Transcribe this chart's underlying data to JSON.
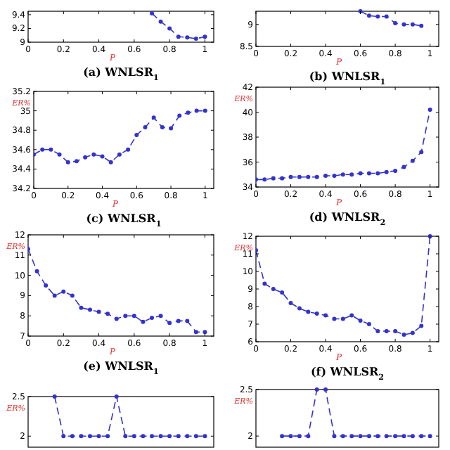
{
  "chart_data": [
    {
      "type": "line",
      "title": "(a) WNLSR$_{1}$",
      "xlabel": "P",
      "series": [
        {
          "color": "#3333cc",
          "x": [
            0.7,
            0.75,
            0.8,
            0.85,
            0.9,
            0.95,
            1
          ],
          "values": [
            9.42,
            9.3,
            9.2,
            9.08,
            9.07,
            9.05,
            9.08
          ]
        }
      ],
      "xlim": [
        0,
        1.05
      ],
      "xticks": [
        0,
        0.2,
        0.4,
        0.6,
        0.8,
        1
      ],
      "ylim": [
        9,
        9.45
      ],
      "yticks": [
        9,
        9.2,
        9.4
      ],
      "marker": "circle",
      "line_style": "dashed"
    },
    {
      "type": "line",
      "title": "(b) WNLSR$_{1}$",
      "xlabel": "P",
      "series": [
        {
          "color": "#3333cc",
          "x": [
            0.6,
            0.65,
            0.7,
            0.75,
            0.8,
            0.85,
            0.9,
            0.95
          ],
          "values": [
            9.3,
            9.2,
            9.18,
            9.18,
            9.03,
            9.0,
            9.0,
            8.97
          ]
        }
      ],
      "xlim": [
        0,
        1.05
      ],
      "xticks": [
        0,
        0.2,
        0.4,
        0.6,
        0.8,
        1
      ],
      "ylim": [
        8.5,
        9.3
      ],
      "yticks": [
        8.5,
        9
      ],
      "marker": "circle",
      "line_style": "dashed"
    },
    {
      "type": "line",
      "title": "(c) WNLSR$_{1}$",
      "xlabel": "P",
      "ylabel": "ER%",
      "x": [
        0,
        0.05,
        0.1,
        0.15,
        0.2,
        0.25,
        0.3,
        0.35,
        0.4,
        0.45,
        0.5,
        0.55,
        0.6,
        0.65,
        0.7,
        0.75,
        0.8,
        0.85,
        0.9,
        0.95,
        1
      ],
      "series": [
        {
          "color": "#3333cc",
          "values": [
            34.55,
            34.6,
            34.6,
            34.55,
            34.47,
            34.48,
            34.52,
            34.55,
            34.53,
            34.47,
            34.55,
            34.6,
            34.75,
            34.83,
            34.93,
            34.83,
            34.82,
            34.95,
            34.98,
            35.0,
            35.0
          ]
        }
      ],
      "xlim": [
        0,
        1.05
      ],
      "xticks": [
        0,
        0.2,
        0.4,
        0.6,
        0.8,
        1
      ],
      "ylim": [
        34.2,
        35.2
      ],
      "yticks": [
        34.2,
        34.4,
        34.6,
        34.8,
        35,
        35.2
      ],
      "marker": "circle",
      "line_style": "dashed"
    },
    {
      "type": "line",
      "title": "(d) WNLSR$_{2}$",
      "xlabel": "P",
      "ylabel": "ER%",
      "x": [
        0,
        0.05,
        0.1,
        0.15,
        0.2,
        0.25,
        0.3,
        0.35,
        0.4,
        0.45,
        0.5,
        0.55,
        0.6,
        0.65,
        0.7,
        0.75,
        0.8,
        0.85,
        0.9,
        0.95,
        1
      ],
      "series": [
        {
          "color": "#3333cc",
          "values": [
            34.6,
            34.6,
            34.7,
            34.7,
            34.8,
            34.8,
            34.8,
            34.8,
            34.9,
            34.9,
            35.0,
            35.0,
            35.1,
            35.1,
            35.1,
            35.2,
            35.3,
            35.6,
            36.1,
            36.8,
            40.2
          ]
        }
      ],
      "xlim": [
        0,
        1.05
      ],
      "xticks": [
        0,
        0.2,
        0.4,
        0.6,
        0.8,
        1
      ],
      "ylim": [
        34,
        42
      ],
      "yticks": [
        34,
        36,
        38,
        40,
        42
      ],
      "marker": "circle",
      "line_style": "dashed"
    },
    {
      "type": "line",
      "title": "(e) WNLSR$_{1}$",
      "xlabel": "P",
      "ylabel": "ER%",
      "x": [
        0,
        0.05,
        0.1,
        0.15,
        0.2,
        0.25,
        0.3,
        0.35,
        0.4,
        0.45,
        0.5,
        0.55,
        0.6,
        0.65,
        0.7,
        0.75,
        0.8,
        0.85,
        0.9,
        0.95,
        1
      ],
      "series": [
        {
          "color": "#3333cc",
          "values": [
            11.3,
            10.2,
            9.5,
            9.0,
            9.2,
            9.0,
            8.4,
            8.3,
            8.2,
            8.1,
            7.85,
            8.0,
            8.0,
            7.7,
            7.9,
            8.0,
            7.65,
            7.75,
            7.75,
            7.2,
            7.2
          ]
        }
      ],
      "xlim": [
        0,
        1.05
      ],
      "xticks": [
        0,
        0.2,
        0.4,
        0.6,
        0.8,
        1
      ],
      "ylim": [
        7,
        12
      ],
      "yticks": [
        7,
        8,
        9,
        10,
        11,
        12
      ],
      "marker": "circle",
      "line_style": "dashed"
    },
    {
      "type": "line",
      "title": "(f) WNLSR$_{2}$",
      "xlabel": "P",
      "ylabel": "ER%",
      "x": [
        0,
        0.05,
        0.1,
        0.15,
        0.2,
        0.25,
        0.3,
        0.35,
        0.4,
        0.45,
        0.5,
        0.55,
        0.6,
        0.65,
        0.7,
        0.75,
        0.8,
        0.85,
        0.9,
        0.95,
        1
      ],
      "series": [
        {
          "color": "#3333cc",
          "values": [
            11.2,
            9.3,
            9.0,
            8.8,
            8.2,
            7.9,
            7.7,
            7.6,
            7.5,
            7.3,
            7.3,
            7.5,
            7.2,
            7.0,
            6.6,
            6.6,
            6.6,
            6.4,
            6.5,
            6.9,
            12
          ]
        }
      ],
      "xlim": [
        0,
        1.05
      ],
      "xticks": [
        0,
        0.2,
        0.4,
        0.6,
        0.8,
        1
      ],
      "ylim": [
        6,
        12
      ],
      "yticks": [
        6,
        7,
        8,
        9,
        10,
        11,
        12
      ],
      "marker": "circle",
      "line_style": "dashed"
    },
    {
      "type": "line",
      "ylabel": "ER%",
      "categories": [
        null,
        null,
        null,
        null,
        null,
        null,
        null,
        null,
        null,
        null,
        null,
        null,
        null,
        null,
        null,
        null,
        null,
        null,
        null,
        null,
        null
      ],
      "series": [
        {
          "color": "#3333cc",
          "values": [
            null,
            null,
            null,
            2.5,
            2,
            2,
            2,
            2,
            2,
            2,
            2.5,
            2,
            2,
            2,
            2,
            2,
            2,
            2,
            2,
            2,
            2
          ]
        }
      ],
      "ylim": [
        1.86,
        2.5
      ],
      "yticks": [
        2,
        2.5
      ],
      "tick_labels": "y",
      "marker": "circle",
      "line_style": "dashed"
    },
    {
      "type": "line",
      "ylabel": "ER%",
      "categories": [
        null,
        null,
        null,
        null,
        null,
        null,
        null,
        null,
        null,
        null,
        null,
        null,
        null,
        null,
        null,
        null,
        null,
        null,
        null,
        null,
        null
      ],
      "series": [
        {
          "color": "#3333cc",
          "values": [
            null,
            null,
            null,
            2,
            2,
            2,
            2,
            2.5,
            2.5,
            2,
            2,
            2,
            2,
            2,
            2,
            2,
            2,
            2,
            2,
            2,
            2
          ]
        }
      ],
      "ylim": [
        1.88,
        2.5
      ],
      "yticks": [
        2,
        2.5
      ],
      "tick_labels": "y",
      "marker": "circle",
      "line_style": "dashed"
    }
  ]
}
